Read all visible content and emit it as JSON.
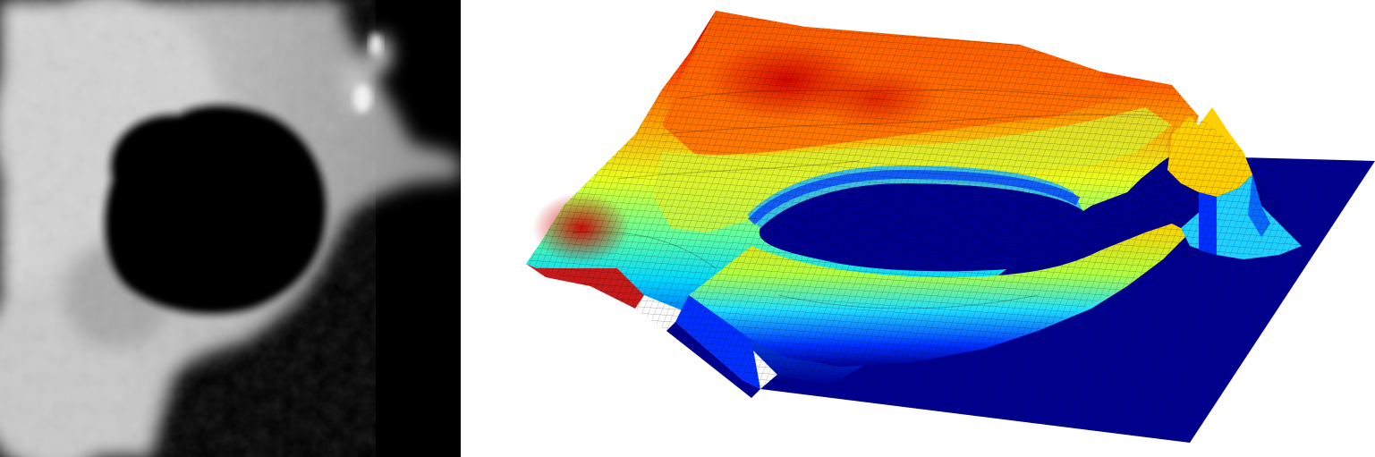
{
  "figure": {
    "panels": [
      {
        "id": "grayscale-image",
        "description_icon": "grayscale-photo-icon"
      },
      {
        "id": "surface-plot",
        "description_icon": "3d-surface-plot-icon"
      }
    ],
    "colors": {
      "background": "#ffffff",
      "colormap_low": "#00008f",
      "colormap_mid_low": "#00a0ff",
      "colormap_mid": "#80ff80",
      "colormap_mid_high": "#ffd000",
      "colormap_high": "#c00000"
    }
  }
}
